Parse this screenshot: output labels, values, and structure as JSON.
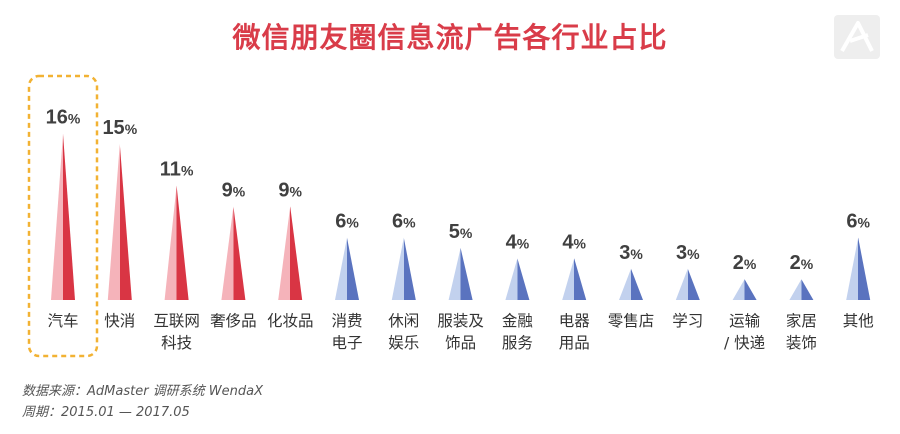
{
  "title": "微信朋友圈信息流广告各行业占比",
  "source": {
    "line1": "数据来源：AdMaster 调研系统 WendaX",
    "line2": "周期：2015.01 — 2017.05"
  },
  "colors": {
    "highlight_light": "#f5b3ba",
    "highlight_dark": "#d93544",
    "normal_light": "#c2d1ee",
    "normal_dark": "#5a73bf",
    "title": "#d93c49",
    "callout_border": "#f2b233"
  },
  "chart_data": {
    "type": "bar",
    "title": "微信朋友圈信息流广告各行业占比",
    "unit": "%",
    "highlight_count": 5,
    "callout_index": 0,
    "categories": [
      [
        "汽车"
      ],
      [
        "快消"
      ],
      [
        "互联网",
        "科技"
      ],
      [
        "奢侈品"
      ],
      [
        "化妆品"
      ],
      [
        "消费",
        "电子"
      ],
      [
        "休闲",
        "娱乐"
      ],
      [
        "服装及",
        "饰品"
      ],
      [
        "金融",
        "服务"
      ],
      [
        "电器",
        "用品"
      ],
      [
        "零售店"
      ],
      [
        "学习"
      ],
      [
        "运输",
        "/ 快递"
      ],
      [
        "家居",
        "装饰"
      ],
      [
        "其他"
      ]
    ],
    "values": [
      16,
      15,
      11,
      9,
      9,
      6,
      6,
      5,
      4,
      4,
      3,
      3,
      2,
      2,
      6
    ]
  }
}
